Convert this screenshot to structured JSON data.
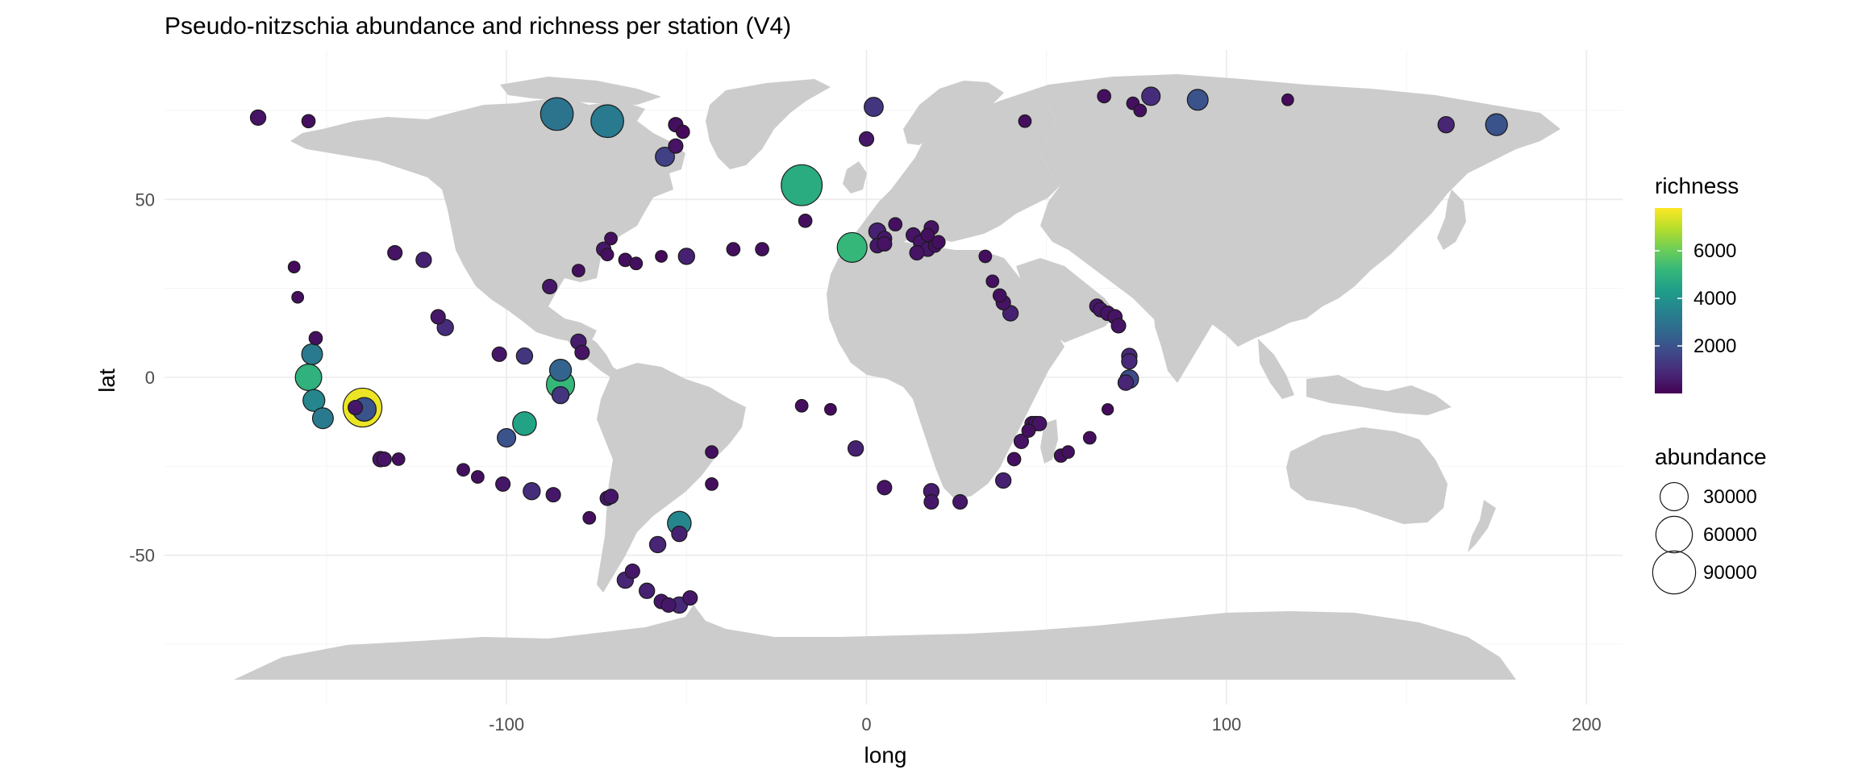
{
  "chart_data": {
    "type": "scatter",
    "title": "Pseudo-nitzschia abundance and richness per station (V4)",
    "xlabel": "long",
    "ylabel": "lat",
    "xlim": [
      -195,
      210
    ],
    "ylim": [
      -92,
      92
    ],
    "x_ticks": [
      -100,
      0,
      100,
      200
    ],
    "y_ticks": [
      -50,
      0,
      50
    ],
    "grid": true,
    "background_map": "world-land",
    "size_legend": {
      "title": "abundance",
      "breaks": [
        30000,
        60000,
        90000
      ],
      "labels": [
        "30000",
        "60000",
        "90000"
      ]
    },
    "color_legend": {
      "title": "richness",
      "range": [
        0,
        7800
      ],
      "breaks": [
        2000,
        4000,
        6000
      ],
      "labels": [
        "2000",
        "4000",
        "6000"
      ],
      "palette": [
        "#440154",
        "#482878",
        "#3e4989",
        "#31688e",
        "#26828e",
        "#1f9e89",
        "#35b779",
        "#6ece58",
        "#b5de2b",
        "#fde725"
      ]
    },
    "points": [
      {
        "long": -169,
        "lat": 73,
        "abundance": 4000,
        "richness": 400
      },
      {
        "long": -155,
        "lat": 72,
        "abundance": 2000,
        "richness": 300
      },
      {
        "long": -86,
        "lat": 74,
        "abundance": 45000,
        "richness": 3000
      },
      {
        "long": -72,
        "lat": 72,
        "abundance": 45000,
        "richness": 3200
      },
      {
        "long": -53,
        "lat": 71,
        "abundance": 3000,
        "richness": 300
      },
      {
        "long": -51,
        "lat": 69,
        "abundance": 2000,
        "richness": 200
      },
      {
        "long": -53,
        "lat": 65,
        "abundance": 3000,
        "richness": 400
      },
      {
        "long": -56,
        "lat": 62,
        "abundance": 9000,
        "richness": 1500
      },
      {
        "long": 2,
        "lat": 76,
        "abundance": 9000,
        "richness": 1200
      },
      {
        "long": 0,
        "lat": 67,
        "abundance": 3000,
        "richness": 500
      },
      {
        "long": -18,
        "lat": 54,
        "abundance": 80000,
        "richness": 4800
      },
      {
        "long": -17,
        "lat": 44,
        "abundance": 2000,
        "richness": 300
      },
      {
        "long": 44,
        "lat": 72,
        "abundance": 1500,
        "richness": 300
      },
      {
        "long": 66,
        "lat": 79,
        "abundance": 2000,
        "richness": 300
      },
      {
        "long": 74,
        "lat": 77,
        "abundance": 1500,
        "richness": 300
      },
      {
        "long": 76,
        "lat": 75,
        "abundance": 1500,
        "richness": 300
      },
      {
        "long": 79,
        "lat": 79,
        "abundance": 8000,
        "richness": 1000
      },
      {
        "long": 92,
        "lat": 78,
        "abundance": 12000,
        "richness": 2000
      },
      {
        "long": 117,
        "lat": 78,
        "abundance": 1000,
        "richness": 200
      },
      {
        "long": 161,
        "lat": 71,
        "abundance": 5000,
        "richness": 800
      },
      {
        "long": 175,
        "lat": 71,
        "abundance": 14000,
        "richness": 2000
      },
      {
        "long": -4,
        "lat": 36.5,
        "abundance": 35000,
        "richness": 5200
      },
      {
        "long": 3,
        "lat": 41,
        "abundance": 6000,
        "richness": 700
      },
      {
        "long": 5,
        "lat": 39,
        "abundance": 3000,
        "richness": 500
      },
      {
        "long": 3,
        "lat": 37,
        "abundance": 3000,
        "richness": 500
      },
      {
        "long": 5,
        "lat": 37.5,
        "abundance": 3000,
        "richness": 400
      },
      {
        "long": 8,
        "lat": 43,
        "abundance": 2000,
        "richness": 300
      },
      {
        "long": 13,
        "lat": 40,
        "abundance": 3000,
        "richness": 400
      },
      {
        "long": 15,
        "lat": 38,
        "abundance": 3000,
        "richness": 400
      },
      {
        "long": 17,
        "lat": 40,
        "abundance": 2000,
        "richness": 300
      },
      {
        "long": 18,
        "lat": 42,
        "abundance": 3000,
        "richness": 400
      },
      {
        "long": 17,
        "lat": 36,
        "abundance": 3000,
        "richness": 500
      },
      {
        "long": 14,
        "lat": 35,
        "abundance": 3000,
        "richness": 400
      },
      {
        "long": 19,
        "lat": 37,
        "abundance": 2000,
        "richness": 300
      },
      {
        "long": 20,
        "lat": 38,
        "abundance": 2000,
        "richness": 300
      },
      {
        "long": 33,
        "lat": 34,
        "abundance": 1500,
        "richness": 300
      },
      {
        "long": 35,
        "lat": 27,
        "abundance": 1500,
        "richness": 300
      },
      {
        "long": 37,
        "lat": 23,
        "abundance": 2000,
        "richness": 300
      },
      {
        "long": 38,
        "lat": 21,
        "abundance": 3000,
        "richness": 400
      },
      {
        "long": 40,
        "lat": 18,
        "abundance": 4000,
        "richness": 700
      },
      {
        "long": 64,
        "lat": 20,
        "abundance": 3000,
        "richness": 500
      },
      {
        "long": 65,
        "lat": 19,
        "abundance": 3000,
        "richness": 500
      },
      {
        "long": 67,
        "lat": 18,
        "abundance": 3000,
        "richness": 400
      },
      {
        "long": 69,
        "lat": 17,
        "abundance": 3000,
        "richness": 400
      },
      {
        "long": 70,
        "lat": 14.5,
        "abundance": 3000,
        "richness": 400
      },
      {
        "long": 73,
        "lat": 6,
        "abundance": 4000,
        "richness": 900
      },
      {
        "long": 73,
        "lat": 4.5,
        "abundance": 4000,
        "richness": 900
      },
      {
        "long": 73,
        "lat": -0.5,
        "abundance": 8000,
        "richness": 1800
      },
      {
        "long": 72,
        "lat": -1.5,
        "abundance": 4000,
        "richness": 800
      },
      {
        "long": 67,
        "lat": -9,
        "abundance": 800,
        "richness": 200
      },
      {
        "long": 62,
        "lat": -17,
        "abundance": 1500,
        "richness": 300
      },
      {
        "long": 56,
        "lat": -21,
        "abundance": 1500,
        "richness": 300
      },
      {
        "long": 54,
        "lat": -22,
        "abundance": 2000,
        "richness": 300
      },
      {
        "long": 46,
        "lat": -13,
        "abundance": 3000,
        "richness": 400
      },
      {
        "long": 47,
        "lat": -13,
        "abundance": 3000,
        "richness": 400
      },
      {
        "long": 48,
        "lat": -13,
        "abundance": 3000,
        "richness": 400
      },
      {
        "long": 45,
        "lat": -15,
        "abundance": 2000,
        "richness": 300
      },
      {
        "long": 43,
        "lat": -18,
        "abundance": 3000,
        "richness": 400
      },
      {
        "long": 41,
        "lat": -23,
        "abundance": 2000,
        "richness": 300
      },
      {
        "long": 38,
        "lat": -29,
        "abundance": 4000,
        "richness": 700
      },
      {
        "long": 18,
        "lat": -32,
        "abundance": 4000,
        "richness": 600
      },
      {
        "long": 18,
        "lat": -35,
        "abundance": 3000,
        "richness": 500
      },
      {
        "long": 26,
        "lat": -35,
        "abundance": 3000,
        "richness": 500
      },
      {
        "long": 5,
        "lat": -31,
        "abundance": 3000,
        "richness": 400
      },
      {
        "long": -3,
        "lat": -20,
        "abundance": 4000,
        "richness": 700
      },
      {
        "long": -10,
        "lat": -9,
        "abundance": 1000,
        "richness": 200
      },
      {
        "long": -18,
        "lat": -8,
        "abundance": 1500,
        "richness": 300
      },
      {
        "long": -131,
        "lat": 35,
        "abundance": 3000,
        "richness": 400
      },
      {
        "long": -123,
        "lat": 33,
        "abundance": 4000,
        "richness": 700
      },
      {
        "long": -159,
        "lat": 31,
        "abundance": 1000,
        "richness": 200
      },
      {
        "long": -158,
        "lat": 22.5,
        "abundance": 1000,
        "richness": 300
      },
      {
        "long": -119,
        "lat": 17,
        "abundance": 3000,
        "richness": 500
      },
      {
        "long": -117,
        "lat": 14,
        "abundance": 5000,
        "richness": 1000
      },
      {
        "long": -153,
        "lat": 11,
        "abundance": 2000,
        "richness": 300
      },
      {
        "long": -154,
        "lat": 6.5,
        "abundance": 12000,
        "richness": 3200
      },
      {
        "long": -155,
        "lat": 0,
        "abundance": 25000,
        "richness": 5000
      },
      {
        "long": -153.5,
        "lat": -6.5,
        "abundance": 14000,
        "richness": 3600
      },
      {
        "long": -151,
        "lat": -11.5,
        "abundance": 12000,
        "richness": 3200
      },
      {
        "long": -140,
        "lat": -8.5,
        "abundance": 70000,
        "richness": 7600
      },
      {
        "long": -139.5,
        "lat": -9,
        "abundance": 18000,
        "richness": 2000
      },
      {
        "long": -142,
        "lat": -8.5,
        "abundance": 3000,
        "richness": 500
      },
      {
        "long": -135,
        "lat": -23,
        "abundance": 4000,
        "richness": 500
      },
      {
        "long": -134,
        "lat": -23,
        "abundance": 3000,
        "richness": 400
      },
      {
        "long": -130,
        "lat": -23,
        "abundance": 1500,
        "richness": 300
      },
      {
        "long": -112,
        "lat": -26,
        "abundance": 1500,
        "richness": 300
      },
      {
        "long": -108,
        "lat": -28,
        "abundance": 1500,
        "richness": 300
      },
      {
        "long": -101,
        "lat": -30,
        "abundance": 3000,
        "richness": 500
      },
      {
        "long": -93,
        "lat": -32,
        "abundance": 6000,
        "richness": 1000
      },
      {
        "long": -87,
        "lat": -33,
        "abundance": 3000,
        "richness": 500
      },
      {
        "long": -100,
        "lat": -17,
        "abundance": 8000,
        "richness": 2000
      },
      {
        "long": -95,
        "lat": -13,
        "abundance": 18000,
        "richness": 4500
      },
      {
        "long": -102,
        "lat": 6.5,
        "abundance": 3000,
        "richness": 500
      },
      {
        "long": -95,
        "lat": 6,
        "abundance": 5000,
        "richness": 1200
      },
      {
        "long": -85,
        "lat": 2,
        "abundance": 14000,
        "richness": 2500
      },
      {
        "long": -85,
        "lat": -2,
        "abundance": 30000,
        "richness": 5200
      },
      {
        "long": -85,
        "lat": -5,
        "abundance": 6000,
        "richness": 1200
      },
      {
        "long": -80,
        "lat": 10,
        "abundance": 4000,
        "richness": 600
      },
      {
        "long": -79,
        "lat": 7,
        "abundance": 3000,
        "richness": 400
      },
      {
        "long": -88,
        "lat": 25.5,
        "abundance": 3000,
        "richness": 500
      },
      {
        "long": -80,
        "lat": 30,
        "abundance": 1500,
        "richness": 300
      },
      {
        "long": -73,
        "lat": 36,
        "abundance": 3000,
        "richness": 500
      },
      {
        "long": -72,
        "lat": 34.5,
        "abundance": 1500,
        "richness": 300
      },
      {
        "long": -71,
        "lat": 39,
        "abundance": 1500,
        "richness": 300
      },
      {
        "long": -67,
        "lat": 33,
        "abundance": 2000,
        "richness": 300
      },
      {
        "long": -64,
        "lat": 32,
        "abundance": 1500,
        "richness": 300
      },
      {
        "long": -57,
        "lat": 34,
        "abundance": 1000,
        "richness": 200
      },
      {
        "long": -50,
        "lat": 34,
        "abundance": 5000,
        "richness": 700
      },
      {
        "long": -37,
        "lat": 36,
        "abundance": 2000,
        "richness": 300
      },
      {
        "long": -29,
        "lat": 36,
        "abundance": 2000,
        "richness": 300
      },
      {
        "long": -43,
        "lat": -21,
        "abundance": 1500,
        "richness": 300
      },
      {
        "long": -43,
        "lat": -30,
        "abundance": 1500,
        "richness": 300
      },
      {
        "long": -77,
        "lat": -39.5,
        "abundance": 1500,
        "richness": 300
      },
      {
        "long": -72,
        "lat": -34,
        "abundance": 3000,
        "richness": 500
      },
      {
        "long": -71,
        "lat": -33.5,
        "abundance": 3000,
        "richness": 500
      },
      {
        "long": -52,
        "lat": -41,
        "abundance": 18000,
        "richness": 3600
      },
      {
        "long": -52,
        "lat": -44,
        "abundance": 4000,
        "richness": 700
      },
      {
        "long": -58,
        "lat": -47,
        "abundance": 5000,
        "richness": 800
      },
      {
        "long": -65,
        "lat": -54.5,
        "abundance": 3000,
        "richness": 500
      },
      {
        "long": -67,
        "lat": -57,
        "abundance": 5000,
        "richness": 800
      },
      {
        "long": -61,
        "lat": -60,
        "abundance": 4000,
        "richness": 700
      },
      {
        "long": -57,
        "lat": -63,
        "abundance": 3000,
        "richness": 500
      },
      {
        "long": -55,
        "lat": -64,
        "abundance": 3000,
        "richness": 500
      },
      {
        "long": -52,
        "lat": -64,
        "abundance": 5000,
        "richness": 900
      },
      {
        "long": -49,
        "lat": -62,
        "abundance": 3000,
        "richness": 500
      }
    ]
  }
}
